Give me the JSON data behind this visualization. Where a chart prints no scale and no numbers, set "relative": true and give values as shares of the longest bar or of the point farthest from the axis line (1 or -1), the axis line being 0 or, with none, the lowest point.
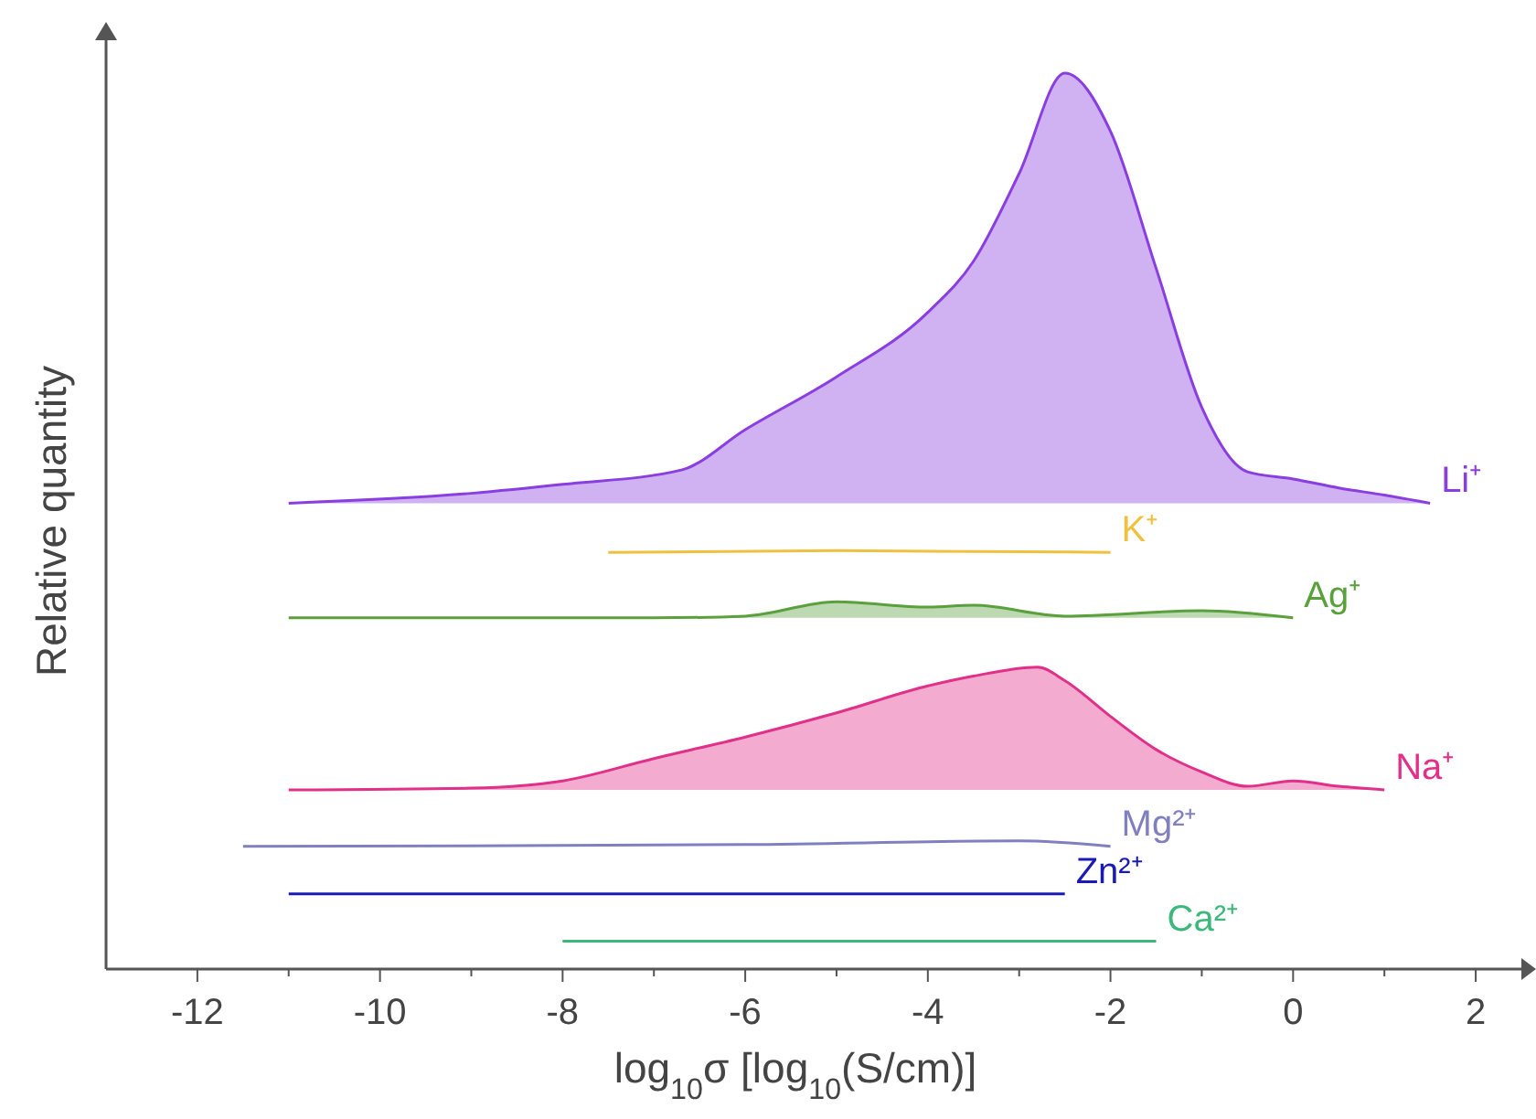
{
  "chart_data": {
    "type": "line",
    "relative": true,
    "xlabel": "log$_{10}$σ [log$_{10}$(S/cm)]",
    "ylabel": "Relative quantity",
    "xlim": [
      -13,
      2.5
    ],
    "xticks": [
      -12,
      {
        "value": -11,
        "label": null
      },
      -10,
      {
        "value": -9,
        "label": null
      },
      -8,
      {
        "value": -7,
        "label": null
      },
      -6,
      {
        "value": -5,
        "label": null
      },
      -4,
      {
        "value": -3,
        "label": null
      },
      -2,
      {
        "value": -1,
        "label": null
      },
      0,
      {
        "value": 1,
        "label": null
      },
      2
    ],
    "series": [
      {
        "name": "Li⁺",
        "color": "#8a3ee0",
        "x": [
          -11,
          -9,
          -8,
          -6.7,
          -6,
          -5,
          -4,
          -3.5,
          -3,
          -2.5,
          -2,
          -1.5,
          -1,
          -0.5,
          0,
          0.5,
          1,
          1.5
        ],
        "values": [
          0.52,
          0.531,
          0.541,
          0.557,
          0.602,
          0.661,
          0.733,
          0.79,
          0.888,
          1,
          0.935,
          0.782,
          0.627,
          0.555,
          0.547,
          0.537,
          0.529,
          0.52
        ],
        "lower": [
          0.52,
          0.52,
          0.52,
          0.52,
          0.52,
          0.52,
          0.52,
          0.52,
          0.52,
          0.52,
          0.52,
          0.52,
          0.52,
          0.52,
          0.52,
          0.52,
          0.52,
          0.52
        ],
        "upper": [
          0.52,
          0.531,
          0.541,
          0.557,
          0.602,
          0.661,
          0.733,
          0.79,
          0.888,
          1,
          0.935,
          0.782,
          0.627,
          0.555,
          0.547,
          0.537,
          0.529,
          0.52
        ]
      },
      {
        "name": "K⁺",
        "color": "#f0c040",
        "x": [
          -7.5,
          -5,
          -2
        ],
        "values": [
          0.465,
          0.467,
          0.465
        ]
      },
      {
        "name": "Ag⁺",
        "color": "#5aa03c",
        "x": [
          -11,
          -7,
          -6,
          -5,
          -4,
          -3.5,
          -2.5,
          -1,
          0
        ],
        "values": [
          0.392,
          0.392,
          0.394,
          0.41,
          0.404,
          0.406,
          0.394,
          0.4,
          0.392
        ],
        "lower": [
          0.392,
          0.392,
          0.392,
          0.392,
          0.392,
          0.392,
          0.392,
          0.392,
          0.392
        ],
        "upper": [
          0.392,
          0.392,
          0.394,
          0.41,
          0.404,
          0.406,
          0.394,
          0.4,
          0.392
        ]
      },
      {
        "name": "Na⁺",
        "color": "#e0308a",
        "x": [
          -11,
          -9,
          -8,
          -7,
          -6,
          -5,
          -4,
          -3.5,
          -2.8,
          -2.5,
          -2,
          -1.5,
          -1,
          -0.5,
          0,
          0.5,
          1
        ],
        "values": [
          0.2,
          0.202,
          0.21,
          0.235,
          0.259,
          0.286,
          0.316,
          0.327,
          0.337,
          0.322,
          0.282,
          0.245,
          0.22,
          0.204,
          0.21,
          0.204,
          0.2
        ],
        "lower": [
          0.2,
          0.2,
          0.2,
          0.2,
          0.2,
          0.2,
          0.2,
          0.2,
          0.2,
          0.2,
          0.2,
          0.2,
          0.2,
          0.2,
          0.2,
          0.2,
          0.2
        ],
        "upper": [
          0.2,
          0.202,
          0.21,
          0.235,
          0.259,
          0.286,
          0.316,
          0.327,
          0.337,
          0.322,
          0.282,
          0.245,
          0.22,
          0.204,
          0.21,
          0.204,
          0.2
        ]
      },
      {
        "name": "Mg²⁺",
        "color": "#8080c0",
        "x": [
          -11.5,
          -6,
          -3,
          -2
        ],
        "values": [
          0.137,
          0.139,
          0.143,
          0.137
        ]
      },
      {
        "name": "Zn²⁺",
        "color": "#1a1ab8",
        "x": [
          -11,
          -6,
          -2.5
        ],
        "values": [
          0.084,
          0.084,
          0.084
        ]
      },
      {
        "name": "Ca²⁺",
        "color": "#3cb87a",
        "x": [
          -8,
          -4,
          -1.5
        ],
        "values": [
          0.031,
          0.031,
          0.031
        ]
      }
    ]
  }
}
